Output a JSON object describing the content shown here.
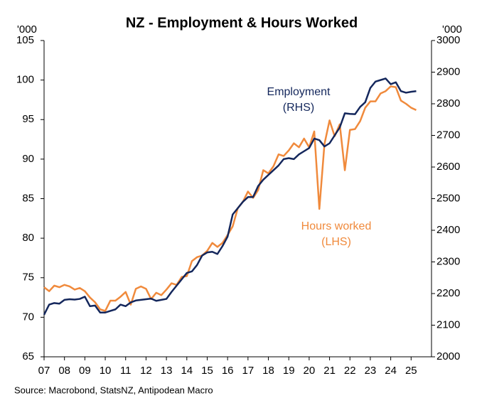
{
  "chart_data": {
    "type": "line",
    "title": "NZ - Employment & Hours Worked",
    "y_unit": "'000",
    "y2_unit": "'000",
    "source": "Source: Macrobond, StatsNZ, Antipodean Macro",
    "annotations": [
      {
        "text": "Employment",
        "series": 1
      },
      {
        "text": "(RHS)",
        "series": 1
      },
      {
        "text": "Hours worked",
        "series": 0
      },
      {
        "text": "(LHS)",
        "series": 0
      }
    ],
    "x": [
      2007,
      2007.25,
      2007.5,
      2007.75,
      2008,
      2008.25,
      2008.5,
      2008.75,
      2009,
      2009.25,
      2009.5,
      2009.75,
      2010,
      2010.25,
      2010.5,
      2010.75,
      2011,
      2011.25,
      2011.5,
      2011.75,
      2012,
      2012.25,
      2012.5,
      2012.75,
      2013,
      2013.25,
      2013.5,
      2013.75,
      2014,
      2014.25,
      2014.5,
      2014.75,
      2015,
      2015.25,
      2015.5,
      2015.75,
      2016,
      2016.25,
      2016.5,
      2016.75,
      2017,
      2017.25,
      2017.5,
      2017.75,
      2018,
      2018.25,
      2018.5,
      2018.75,
      2019,
      2019.25,
      2019.5,
      2019.75,
      2020,
      2020.25,
      2020.5,
      2020.75,
      2021,
      2021.25,
      2021.5,
      2021.75,
      2022,
      2022.25,
      2022.5,
      2022.75,
      2023,
      2023.25,
      2023.5,
      2023.75,
      2024,
      2024.25,
      2024.5,
      2024.75,
      2025,
      2025.25
    ],
    "series": [
      {
        "name": "Hours worked",
        "color": "#f08a3c",
        "axis": "y",
        "values": [
          73.8,
          73.3,
          74.0,
          73.8,
          74.1,
          73.9,
          73.5,
          73.7,
          73.3,
          72.5,
          71.9,
          71.0,
          70.8,
          72.1,
          72.1,
          72.6,
          73.2,
          71.6,
          73.6,
          73.9,
          73.6,
          72.3,
          73.1,
          72.8,
          73.5,
          74.3,
          74.1,
          75.1,
          75.2,
          77.1,
          77.6,
          77.8,
          78.4,
          79.4,
          78.9,
          79.4,
          80.4,
          81.5,
          83.8,
          84.6,
          85.9,
          85.1,
          86.1,
          88.6,
          88.2,
          89.1,
          90.6,
          90.4,
          91.1,
          92.0,
          91.5,
          92.6,
          91.5,
          93.5,
          83.7,
          91.9,
          94.9,
          92.9,
          94.4,
          88.6,
          93.7,
          93.8,
          94.8,
          96.5,
          97.3,
          97.3,
          98.3,
          98.6,
          99.2,
          99.1,
          97.4,
          97.0,
          96.5,
          96.2
        ]
      },
      {
        "name": "Employment",
        "color": "#14275c",
        "axis": "y2",
        "values": [
          2133,
          2165,
          2170,
          2168,
          2180,
          2182,
          2181,
          2183,
          2190,
          2160,
          2162,
          2140,
          2140,
          2145,
          2150,
          2165,
          2160,
          2172,
          2178,
          2180,
          2182,
          2184,
          2177,
          2180,
          2183,
          2205,
          2225,
          2245,
          2265,
          2270,
          2290,
          2320,
          2330,
          2332,
          2325,
          2350,
          2380,
          2450,
          2470,
          2490,
          2505,
          2505,
          2540,
          2560,
          2575,
          2590,
          2605,
          2625,
          2628,
          2625,
          2640,
          2650,
          2660,
          2690,
          2685,
          2665,
          2675,
          2700,
          2725,
          2770,
          2768,
          2767,
          2790,
          2805,
          2850,
          2870,
          2875,
          2880,
          2862,
          2868,
          2840,
          2835,
          2838,
          2840
        ]
      }
    ],
    "xlim": [
      2007,
      2026
    ],
    "xticks": [
      {
        "value": 2007,
        "label": "07"
      },
      {
        "value": 2008,
        "label": "08"
      },
      {
        "value": 2009,
        "label": "09"
      },
      {
        "value": 2010,
        "label": "10"
      },
      {
        "value": 2011,
        "label": "11"
      },
      {
        "value": 2012,
        "label": "12"
      },
      {
        "value": 2013,
        "label": "13"
      },
      {
        "value": 2014,
        "label": "14"
      },
      {
        "value": 2015,
        "label": "15"
      },
      {
        "value": 2016,
        "label": "16"
      },
      {
        "value": 2017,
        "label": "17"
      },
      {
        "value": 2018,
        "label": "18"
      },
      {
        "value": 2019,
        "label": "19"
      },
      {
        "value": 2020,
        "label": "20"
      },
      {
        "value": 2021,
        "label": "21"
      },
      {
        "value": 2022,
        "label": "22"
      },
      {
        "value": 2023,
        "label": "23"
      },
      {
        "value": 2024,
        "label": "24"
      },
      {
        "value": 2025,
        "label": "25"
      }
    ],
    "ylim": [
      65,
      105
    ],
    "yticks": [
      65,
      70,
      75,
      80,
      85,
      90,
      95,
      100,
      105
    ],
    "y2lim": [
      2000,
      3000
    ],
    "y2ticks": [
      2000,
      2100,
      2200,
      2300,
      2400,
      2500,
      2600,
      2700,
      2800,
      2900,
      3000
    ],
    "grid": false
  }
}
